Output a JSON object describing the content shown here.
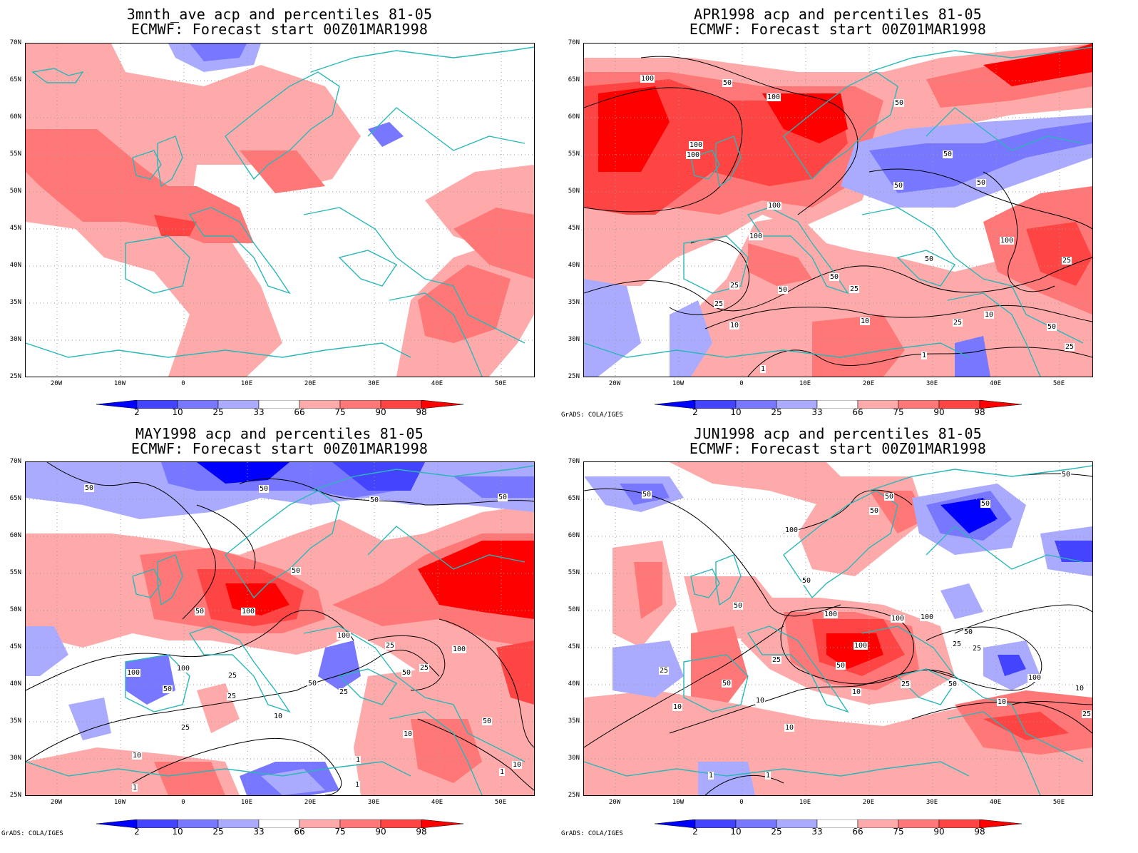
{
  "panels": [
    {
      "title1": "3mnth_ave acp and percentiles 81-05",
      "title2": "ECMWF: Forecast start 00Z01MAR1998",
      "credit": ""
    },
    {
      "title1": "APR1998 acp and percentiles 81-05",
      "title2": "ECMWF: Forecast start 00Z01MAR1998",
      "credit": "GrADS: COLA/IGES"
    },
    {
      "title1": "MAY1998 acp and percentiles 81-05",
      "title2": "ECMWF: Forecast start 00Z01MAR1998",
      "credit": "GrADS: COLA/IGES"
    },
    {
      "title1": "JUN1998 acp and percentiles 81-05",
      "title2": "ECMWF: Forecast start 00Z01MAR1998",
      "credit": "GrADS: COLA/IGES"
    }
  ],
  "axes": {
    "lat_labels": [
      "70N",
      "65N",
      "60N",
      "55N",
      "50N",
      "45N",
      "40N",
      "35N",
      "30N",
      "25N"
    ],
    "lon_labels": [
      "20W",
      "10W",
      "0",
      "10E",
      "20E",
      "30E",
      "40E",
      "50E"
    ]
  },
  "colorbar": {
    "labels": [
      "2",
      "10",
      "25",
      "33",
      "66",
      "75",
      "90",
      "98"
    ],
    "colors": [
      "#0000ff",
      "#4444ff",
      "#7777ff",
      "#aaaaff",
      "#ffffff",
      "#ffaaaa",
      "#ff7777",
      "#ff4444",
      "#ff0000"
    ]
  },
  "colors": {
    "coast": "#2ab7b7",
    "grid": "#999999",
    "contour": "#000000"
  },
  "contour_labels": {
    "p1": [
      "100",
      "50",
      "100",
      "100",
      "100",
      "100",
      "100",
      "50",
      "50",
      "50",
      "50",
      "50",
      "100",
      "25",
      "50",
      "25",
      "50",
      "25",
      "10",
      "25",
      "10",
      "50",
      "1",
      "1",
      "25",
      "10",
      "100",
      "25"
    ],
    "p2": [
      "50",
      "50",
      "50",
      "50",
      "100",
      "50",
      "100",
      "100",
      "25",
      "25",
      "50",
      "25",
      "25",
      "100",
      "50",
      "50",
      "25",
      "10",
      "10",
      "50",
      "10",
      "1",
      "1",
      "1",
      "1",
      "25",
      "10",
      "1",
      "50",
      "100"
    ],
    "p3": [
      "50",
      "50",
      "50",
      "100",
      "100",
      "50",
      "100",
      "50",
      "25",
      "25",
      "10",
      "25",
      "50",
      "10",
      "10",
      "10",
      "100",
      "50",
      "100",
      "50",
      "25",
      "50",
      "1",
      "1",
      "10",
      "50",
      "10",
      "25",
      "100",
      "10",
      "25",
      "50"
    ]
  }
}
